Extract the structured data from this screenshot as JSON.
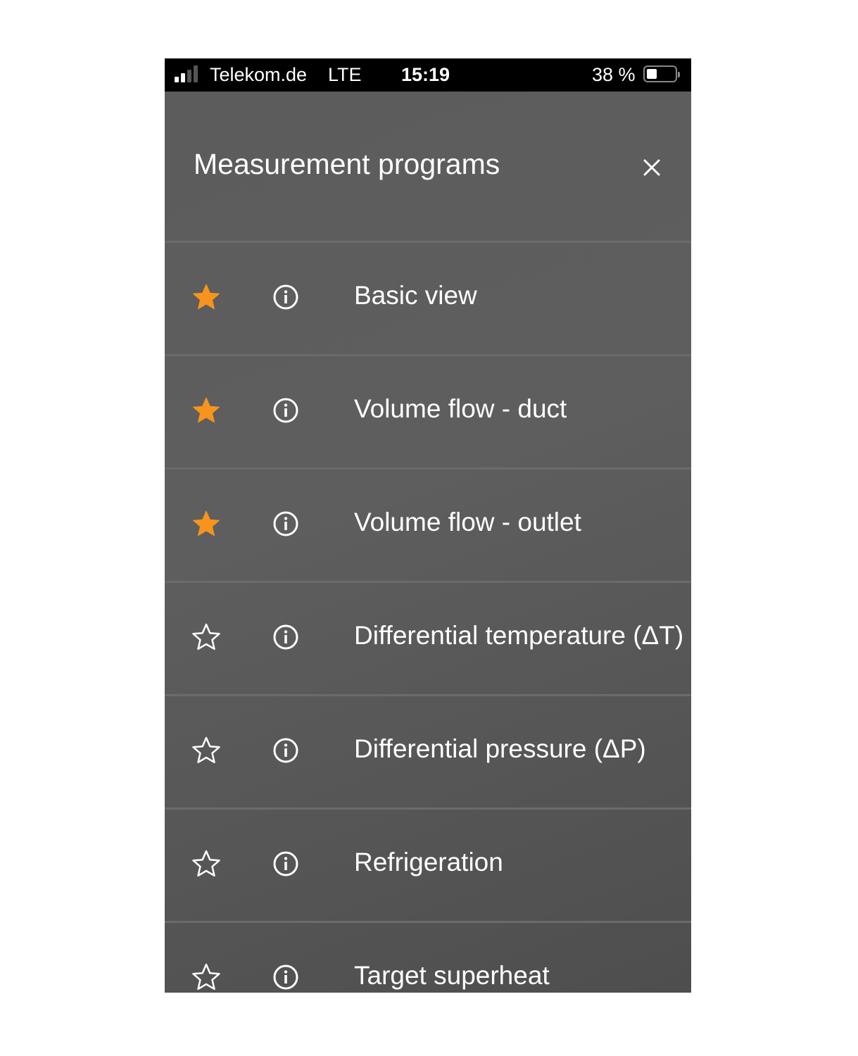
{
  "status_bar": {
    "carrier": "Telekom.de",
    "network": "LTE",
    "time": "15:19",
    "battery": "38 %",
    "battery_level": 0.38,
    "signal_bars": 2
  },
  "header": {
    "title": "Measurement programs",
    "close_icon": "close-icon"
  },
  "colors": {
    "favorite": "#F7941D",
    "background": "#5a5a5a"
  },
  "programs": [
    {
      "label": "Basic view",
      "favorite": true
    },
    {
      "label": "Volume flow - duct",
      "favorite": true
    },
    {
      "label": "Volume flow - outlet",
      "favorite": true
    },
    {
      "label": "Differential temperature (ΔT)",
      "favorite": false
    },
    {
      "label": "Differential pressure (ΔP)",
      "favorite": false
    },
    {
      "label": "Refrigeration",
      "favorite": false
    },
    {
      "label": "Target superheat",
      "favorite": false
    }
  ]
}
